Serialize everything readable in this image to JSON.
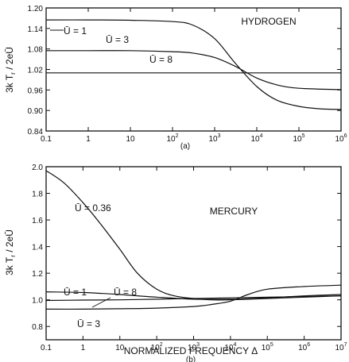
{
  "chart_data": [
    {
      "type": "line",
      "name": "HYDROGEN",
      "panel_label": "(a)",
      "xscale": "log",
      "xlim": [
        0.1,
        1000000
      ],
      "ylim": [
        0.84,
        1.2
      ],
      "ylabel": "3k T_r / 2eŪ",
      "x_tick_labels": [
        "0.1",
        "1",
        "10",
        "10^2",
        "10^3",
        "10^4",
        "10^5",
        "10^6"
      ],
      "y_tick_labels": [
        "1.20",
        "1.14",
        "1.08",
        "1.02",
        "0.96",
        "0.90",
        "0.84"
      ],
      "y_ticks": [
        1.2,
        1.14,
        1.08,
        1.02,
        0.96,
        0.9,
        0.84
      ],
      "series": [
        {
          "name": "Ū = 1",
          "x": [
            0.1,
            1,
            10,
            100,
            300,
            1000,
            3000,
            10000,
            30000,
            100000,
            300000,
            1000000
          ],
          "y": [
            1.165,
            1.165,
            1.164,
            1.16,
            1.15,
            1.11,
            1.04,
            0.97,
            0.93,
            0.912,
            0.905,
            0.903
          ]
        },
        {
          "name": "Ū = 3",
          "x": [
            0.1,
            1,
            10,
            100,
            300,
            1000,
            3000,
            10000,
            30000,
            100000,
            1000000
          ],
          "y": [
            1.075,
            1.075,
            1.075,
            1.072,
            1.068,
            1.055,
            1.03,
            0.995,
            0.975,
            0.965,
            0.961
          ]
        },
        {
          "name": "Ū = 8",
          "x": [
            0.1,
            1000000
          ],
          "y": [
            1.01,
            1.01
          ]
        }
      ]
    },
    {
      "type": "line",
      "name": "MERCURY",
      "panel_label": "(b)",
      "xscale": "log",
      "xlim": [
        0.1,
        10000000
      ],
      "ylim": [
        0.7,
        2.0
      ],
      "xlabel": "NORMALIZED FREQUENCY Δ",
      "ylabel": "3k T_r / 2eŪ",
      "x_tick_labels": [
        "0.1",
        "1",
        "10",
        "10^2",
        "10^3",
        "10^4",
        "10^5",
        "10^6",
        "10^7"
      ],
      "y_tick_labels": [
        "2.0",
        "1.8",
        "1.6",
        "1.4",
        "1.2",
        "1.0",
        "0.8"
      ],
      "y_ticks": [
        2.0,
        1.8,
        1.6,
        1.4,
        1.2,
        1.0,
        0.8
      ],
      "series": [
        {
          "name": "Ū = 0.36",
          "x": [
            0.1,
            0.3,
            1,
            3,
            10,
            30,
            100,
            300,
            1000,
            3000,
            10000,
            100000,
            10000000
          ],
          "y": [
            1.97,
            1.88,
            1.73,
            1.57,
            1.38,
            1.2,
            1.08,
            1.03,
            1.01,
            1.0,
            1.0,
            1.01,
            1.03
          ]
        },
        {
          "name": "Ū = 1",
          "x": [
            0.1,
            1,
            10,
            100,
            1000,
            10000,
            100000,
            1000000,
            10000000
          ],
          "y": [
            1.06,
            1.055,
            1.04,
            1.02,
            1.005,
            1.005,
            1.015,
            1.03,
            1.04
          ]
        },
        {
          "name": "Ū = 8",
          "x": [
            0.1,
            1,
            10,
            100,
            1000,
            10000,
            100000,
            1000000,
            10000000
          ],
          "y": [
            0.995,
            0.998,
            1.0,
            1.005,
            1.01,
            1.015,
            1.02,
            1.025,
            1.03
          ]
        },
        {
          "name": "Ū = 3",
          "x": [
            0.1,
            1,
            10,
            100,
            1000,
            3000,
            10000,
            30000,
            100000,
            1000000,
            10000000
          ],
          "y": [
            0.93,
            0.93,
            0.933,
            0.938,
            0.95,
            0.965,
            0.99,
            1.04,
            1.08,
            1.1,
            1.11
          ]
        }
      ]
    }
  ]
}
